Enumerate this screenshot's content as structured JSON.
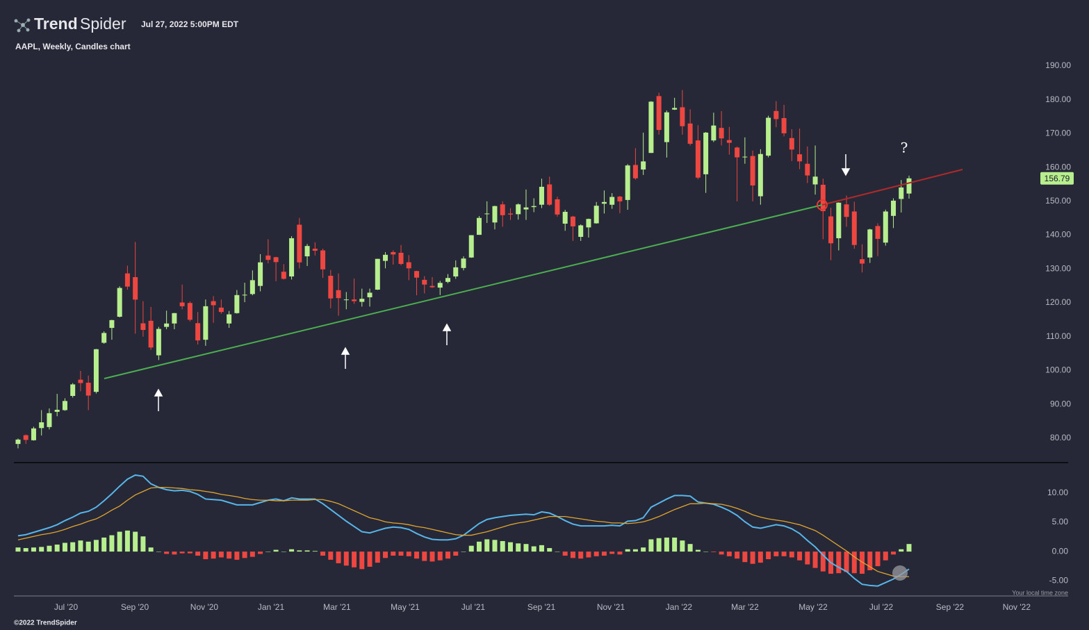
{
  "header": {
    "brand": [
      "Trend",
      "Spider"
    ],
    "timestamp": "Jul 27, 2022 5:00PM EDT"
  },
  "chart_data": [
    {
      "type": "candlestick",
      "title": "AAPL, Weekly, Candles chart",
      "annotations": [
        "?"
      ],
      "up_color": "#b8ef8e",
      "down_color": "#ee4640",
      "xlim": [
        -0.53,
        134.36
      ],
      "ylim": [
        73.0,
        194.1
      ],
      "yticks": [
        {
          "value": 80,
          "label": "80.00"
        },
        {
          "value": 90,
          "label": "90.00"
        },
        {
          "value": 100,
          "label": "100.00"
        },
        {
          "value": 110,
          "label": "110.00"
        },
        {
          "value": 120,
          "label": "120.00"
        },
        {
          "value": 130,
          "label": "130.00"
        },
        {
          "value": 140,
          "label": "140.00"
        },
        {
          "value": 150,
          "label": "150.00"
        },
        {
          "value": 160,
          "label": "160.00"
        },
        {
          "value": 170,
          "label": "170.00"
        },
        {
          "value": 180,
          "label": "180.00"
        },
        {
          "value": 190,
          "label": "190.00"
        }
      ],
      "open": [
        78.3,
        80.9,
        79.4,
        83.0,
        83.3,
        87.8,
        88.3,
        92.5,
        97.3,
        96.4,
        93.7,
        108.2,
        112.6,
        115.9,
        128.7,
        127.6,
        113.95,
        114.7,
        104.5,
        112.9,
        113.9,
        120.1,
        119.96,
        114.0,
        109.1,
        120.5,
        118.6,
        113.9,
        116.97,
        122.3,
        122.6,
        125.0,
        133.99,
        133.5,
        129.2,
        127.8,
        143.1,
        133.75,
        136.0,
        135.5,
        128.0,
        123.75,
        120.9,
        121.0,
        120.3,
        121.65,
        123.9,
        132.4,
        135.0,
        134.8,
        132.0,
        129.4,
        126.8,
        125.0,
        124.5,
        126.2,
        127.8,
        130.3,
        133.4,
        140.1,
        146.2,
        143.75,
        149.1,
        146.4,
        146.2,
        147.6,
        148.3,
        149.0,
        155.0,
        150.6,
        143.4,
        145.5,
        139.5,
        142.3,
        143.5,
        149.3,
        148.99,
        151.4,
        150.4,
        160.75,
        159.4,
        164.3,
        181.1,
        167.5,
        177.1,
        177.8,
        173.0,
        168.0,
        158.0,
        168.0,
        171.7,
        168.1,
        165.9,
        163.1,
        163.4,
        151.5,
        163.5,
        176.7,
        174.6,
        168.7,
        163.9,
        161.1,
        155.0,
        154.9,
        145.55,
        139.1,
        149.1,
        147.0,
        132.9,
        133.4,
        142.7,
        137.8,
        145.7,
        150.7,
        152.3
      ],
      "high": [
        79.9,
        81.1,
        83.4,
        88.3,
        88.8,
        93.1,
        91.8,
        96.3,
        99.9,
        98.5,
        106.4,
        111.6,
        115.0,
        124.9,
        131.0,
        137.98,
        120.5,
        118.8,
        112.9,
        117.7,
        117.0,
        125.4,
        120.4,
        117.3,
        121.0,
        121.99,
        120.99,
        117.6,
        123.8,
        125.95,
        129.6,
        134.4,
        138.8,
        133.6,
        131.45,
        139.7,
        145.1,
        137.4,
        137.9,
        136.0,
        129.7,
        128.7,
        123.2,
        127.2,
        124.2,
        124.2,
        133.0,
        135.0,
        135.5,
        137.1,
        134.1,
        129.5,
        127.9,
        127.6,
        126.5,
        128.5,
        132.55,
        133.75,
        140.0,
        145.65,
        150.0,
        148.7,
        150.0,
        148.0,
        149.4,
        153.5,
        150.9,
        156.7,
        157.3,
        151.4,
        147.5,
        145.7,
        143.2,
        144.9,
        149.8,
        153.2,
        152.4,
        151.6,
        161.0,
        165.7,
        170.3,
        179.6,
        182.1,
        176.85,
        180.6,
        182.9,
        177.2,
        172.5,
        170.5,
        176.2,
        176.65,
        172.0,
        166.2,
        168.9,
        165.0,
        165.4,
        175.3,
        179.6,
        178.5,
        171.3,
        171.5,
        166.2,
        166.5,
        156.7,
        148.1,
        149.7,
        151.7,
        149.9,
        137.3,
        141.9,
        143.5,
        147.55,
        150.9,
        156.3,
        157.6
      ],
      "low": [
        77.0,
        78.3,
        79.3,
        80.8,
        82.6,
        86.5,
        88.1,
        92.0,
        93.9,
        88.3,
        93.2,
        107.9,
        109.1,
        115.7,
        123.9,
        110.9,
        110.0,
        106.1,
        103.1,
        112.2,
        112.2,
        118.1,
        114.5,
        107.7,
        107.3,
        114.1,
        116.8,
        112.6,
        116.8,
        120.2,
        122.25,
        123.4,
        131.7,
        126.4,
        126.9,
        126.9,
        130.2,
        130.9,
        134.0,
        127.4,
        118.4,
        116.2,
        118.1,
        119.7,
        118.9,
        118.9,
        123.8,
        130.2,
        131.3,
        131.1,
        126.7,
        122.25,
        122.8,
        124.4,
        122.3,
        125.8,
        127.1,
        129.6,
        133.3,
        140.1,
        143.6,
        141.7,
        142.5,
        144.5,
        144.6,
        144.5,
        146.8,
        148.0,
        148.7,
        145.5,
        141.3,
        138.3,
        138.3,
        139.3,
        143.4,
        146.4,
        147.8,
        146.5,
        147.5,
        156.4,
        157.8,
        164.3,
        169.7,
        162.95,
        177.0,
        169.7,
        166.5,
        156.5,
        152.5,
        167.5,
        166.5,
        163.8,
        150.0,
        161.1,
        150.0,
        149.0,
        163.0,
        171.9,
        169.2,
        161.9,
        159.5,
        155.4,
        152.0,
        138.8,
        132.6,
        135.5,
        142.5,
        136.0,
        129.0,
        131.8,
        133.8,
        136.9,
        142.1,
        146.7,
        150.8
      ],
      "close": [
        79.6,
        79.5,
        82.9,
        84.7,
        87.4,
        88.4,
        91.0,
        95.9,
        96.3,
        92.6,
        106.3,
        111.1,
        114.9,
        124.4,
        124.8,
        120.96,
        112.0,
        106.8,
        112.3,
        113.9,
        116.97,
        119.0,
        115.0,
        108.9,
        119.0,
        119.3,
        117.3,
        116.6,
        122.3,
        122.4,
        126.7,
        131.97,
        132.7,
        132.05,
        127.1,
        139.1,
        131.96,
        136.8,
        135.4,
        129.9,
        121.3,
        121.4,
        121.0,
        120.5,
        121.2,
        123.0,
        133.0,
        134.2,
        134.3,
        131.5,
        130.2,
        127.45,
        125.4,
        124.6,
        125.9,
        127.35,
        130.5,
        133.1,
        140.0,
        145.1,
        146.4,
        148.6,
        145.9,
        146.1,
        149.1,
        148.2,
        148.6,
        154.3,
        149.0,
        146.1,
        146.9,
        142.6,
        142.9,
        144.8,
        148.7,
        149.8,
        151.3,
        149.99,
        160.6,
        156.8,
        161.8,
        179.45,
        171.1,
        176.3,
        177.6,
        172.2,
        167.0,
        157.0,
        170.3,
        172.4,
        168.6,
        167.3,
        163.0,
        163.2,
        154.7,
        163.98,
        174.7,
        174.3,
        170.1,
        165.3,
        161.8,
        157.65,
        157.3,
        147.1,
        137.6,
        149.6,
        145.4,
        137.1,
        131.6,
        141.7,
        138.9,
        147.0,
        150.2,
        154.1,
        156.79
      ]
    },
    {
      "type": "macd",
      "xlim": [
        -0.53,
        134.36
      ],
      "ylim": [
        -7.6,
        15
      ],
      "yticks": [
        {
          "value": -5,
          "label": "-5.00"
        },
        {
          "value": 0,
          "label": "0.00"
        },
        {
          "value": 5,
          "label": "5.00"
        },
        {
          "value": 10,
          "label": "10.00"
        }
      ],
      "xticks": [
        {
          "value": 6.14,
          "label": "Jul '20"
        },
        {
          "value": 14.94,
          "label": "Sep '20"
        },
        {
          "value": 23.83,
          "label": "Nov '20"
        },
        {
          "value": 32.37,
          "label": "Jan '21"
        },
        {
          "value": 40.81,
          "label": "Mar '21"
        },
        {
          "value": 49.53,
          "label": "May '21"
        },
        {
          "value": 58.24,
          "label": "Jul '21"
        },
        {
          "value": 66.96,
          "label": "Sep '21"
        },
        {
          "value": 75.85,
          "label": "Nov '21"
        },
        {
          "value": 84.56,
          "label": "Jan '22"
        },
        {
          "value": 93.01,
          "label": "Mar '22"
        },
        {
          "value": 101.73,
          "label": "May '22"
        },
        {
          "value": 110.44,
          "label": "Jul '22"
        },
        {
          "value": 119.24,
          "label": "Sep '22"
        },
        {
          "value": 127.77,
          "label": "Nov '22"
        }
      ],
      "series": [
        {
          "color": "#57b6ea",
          "values": [
            2.7,
            2.9,
            3.3,
            3.7,
            4.1,
            4.6,
            5.3,
            5.9,
            6.6,
            6.9,
            7.6,
            8.7,
            9.9,
            11.2,
            12.4,
            13.1,
            12.9,
            11.6,
            11.0,
            10.6,
            10.4,
            10.5,
            10.3,
            9.8,
            9.0,
            8.9,
            8.8,
            8.4,
            8.0,
            8.0,
            8.0,
            8.4,
            8.8,
            9.0,
            8.7,
            9.2,
            9.0,
            9.0,
            9.0,
            8.2,
            7.2,
            6.2,
            5.2,
            4.3,
            3.4,
            3.2,
            3.6,
            4.0,
            4.2,
            4.1,
            3.8,
            3.1,
            2.5,
            2.1,
            2.0,
            2.0,
            2.2,
            2.8,
            3.8,
            4.8,
            5.5,
            5.8,
            6.0,
            6.2,
            6.3,
            6.4,
            6.3,
            6.8,
            6.6,
            6.0,
            5.3,
            4.7,
            4.4,
            4.4,
            4.4,
            4.4,
            4.5,
            4.4,
            5.2,
            5.3,
            5.8,
            7.6,
            8.3,
            9.0,
            9.6,
            9.6,
            9.5,
            8.5,
            8.3,
            8.1,
            7.6,
            7.0,
            6.2,
            5.1,
            4.2,
            4.0,
            4.3,
            4.6,
            4.4,
            3.9,
            3.1,
            1.9,
            0.8,
            -0.6,
            -1.9,
            -2.7,
            -3.4,
            -4.6,
            -5.6,
            -5.8,
            -5.9,
            -5.3,
            -4.7,
            -3.9,
            -3.0
          ]
        },
        {
          "color": "#e2a62e",
          "values": [
            2.0,
            2.3,
            2.6,
            2.9,
            3.1,
            3.4,
            3.8,
            4.3,
            4.7,
            5.2,
            5.6,
            6.3,
            7.1,
            7.8,
            8.8,
            9.7,
            10.3,
            10.9,
            11.0,
            11.0,
            10.9,
            10.8,
            10.6,
            10.5,
            10.3,
            10.1,
            9.8,
            9.6,
            9.4,
            9.1,
            8.9,
            8.8,
            8.8,
            8.7,
            8.7,
            8.8,
            8.8,
            8.8,
            8.9,
            8.9,
            8.6,
            8.2,
            7.6,
            7.0,
            6.4,
            5.8,
            5.5,
            5.1,
            4.9,
            4.8,
            4.6,
            4.3,
            4.1,
            3.8,
            3.5,
            3.2,
            2.9,
            2.8,
            2.8,
            3.1,
            3.4,
            3.8,
            4.2,
            4.6,
            4.9,
            5.1,
            5.4,
            5.7,
            6.0,
            6.0,
            6.0,
            5.8,
            5.6,
            5.4,
            5.2,
            5.1,
            4.9,
            4.9,
            4.8,
            4.9,
            5.1,
            5.5,
            6.0,
            6.6,
            7.2,
            7.7,
            8.2,
            8.2,
            8.3,
            8.2,
            8.1,
            7.8,
            7.4,
            6.9,
            6.3,
            5.9,
            5.6,
            5.4,
            5.2,
            4.9,
            4.6,
            4.1,
            3.6,
            2.8,
            1.9,
            1.0,
            0.1,
            -0.9,
            -1.8,
            -2.6,
            -3.4,
            -3.8,
            -4.2,
            -4.3,
            -4.3
          ]
        }
      ],
      "histogram": {
        "up_color": "#b8ef8e",
        "down_color": "#ee4640",
        "values": [
          0.7,
          0.6,
          0.7,
          0.8,
          1.0,
          1.2,
          1.5,
          1.6,
          1.9,
          1.7,
          2.0,
          2.4,
          2.8,
          3.4,
          3.6,
          3.4,
          2.6,
          0.7,
          0.0,
          -0.4,
          -0.5,
          -0.3,
          -0.3,
          -0.7,
          -1.3,
          -1.2,
          -1.0,
          -1.2,
          -1.4,
          -1.1,
          -0.9,
          -0.4,
          0.0,
          0.3,
          0.0,
          0.4,
          0.2,
          0.2,
          0.1,
          -0.7,
          -1.4,
          -2.0,
          -2.4,
          -2.7,
          -3.0,
          -2.6,
          -1.9,
          -1.1,
          -0.7,
          -0.7,
          -0.8,
          -1.2,
          -1.6,
          -1.7,
          -1.5,
          -1.2,
          -0.7,
          0.0,
          1.0,
          1.7,
          2.1,
          2.0,
          1.8,
          1.6,
          1.4,
          1.3,
          0.9,
          1.1,
          0.6,
          0.0,
          -0.7,
          -1.1,
          -1.2,
          -1.0,
          -0.8,
          -0.7,
          -0.4,
          -0.5,
          0.4,
          0.4,
          0.7,
          2.1,
          2.3,
          2.4,
          2.4,
          1.9,
          1.3,
          0.3,
          0.0,
          -0.1,
          -0.5,
          -0.8,
          -1.2,
          -1.8,
          -2.1,
          -1.9,
          -1.3,
          -0.8,
          -0.8,
          -1.0,
          -1.5,
          -2.2,
          -2.8,
          -3.4,
          -3.8,
          -3.7,
          -3.5,
          -3.7,
          -3.8,
          -3.2,
          -2.5,
          -1.5,
          -0.5,
          0.4,
          1.3
        ]
      }
    }
  ],
  "footer": {
    "timezone_note": "Your local time zone",
    "copyright": "©2022 TrendSpider"
  }
}
